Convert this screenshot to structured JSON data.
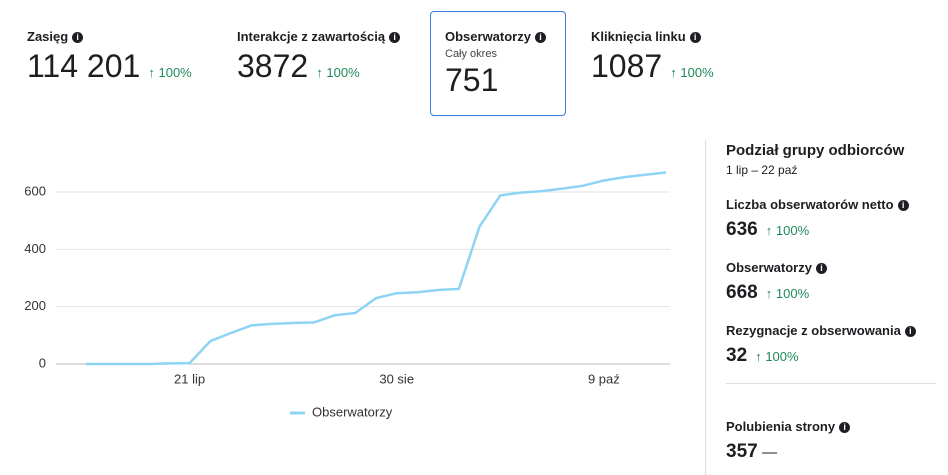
{
  "metrics": [
    {
      "label": "Zasięg",
      "value": "114 201",
      "change": "100%"
    },
    {
      "label": "Interakcje z zawartością",
      "value": "3872",
      "change": "100%"
    },
    {
      "label": "Obserwatorzy",
      "sublabel": "Cały okres",
      "value": "751"
    },
    {
      "label": "Kliknięcia linku",
      "value": "1087",
      "change": "100%"
    }
  ],
  "panel": {
    "title": "Podział grupy odbiorców",
    "period": "1 lip – 22 paź",
    "items": [
      {
        "label": "Liczba obserwatorów netto",
        "value": "636",
        "change": "100%"
      },
      {
        "label": "Obserwatorzy",
        "value": "668",
        "change": "100%"
      },
      {
        "label": "Rezygnacje z obserwowania",
        "value": "32",
        "change": "100%"
      }
    ],
    "extra": {
      "label": "Polubienia strony",
      "value": "357",
      "change": "—"
    }
  },
  "chart_data": {
    "type": "line",
    "categories": [
      null,
      null,
      null,
      null,
      null,
      "21 lip",
      null,
      null,
      null,
      null,
      null,
      null,
      null,
      null,
      null,
      "30 sie",
      null,
      null,
      null,
      null,
      null,
      null,
      null,
      null,
      null,
      "9 paź",
      null,
      null,
      null
    ],
    "series": [
      {
        "name": "Obserwatorzy",
        "color": "#8dd4f4",
        "values": [
          0,
          0,
          0,
          0,
          2,
          3,
          80,
          108,
          135,
          140,
          143,
          145,
          170,
          178,
          230,
          247,
          250,
          258,
          262,
          480,
          588,
          598,
          603,
          612,
          622,
          640,
          652,
          660,
          668
        ]
      }
    ],
    "ylim": [
      0,
      750
    ],
    "yticks": [
      0,
      200,
      400,
      600
    ],
    "grid": true,
    "legend": "bottom"
  }
}
